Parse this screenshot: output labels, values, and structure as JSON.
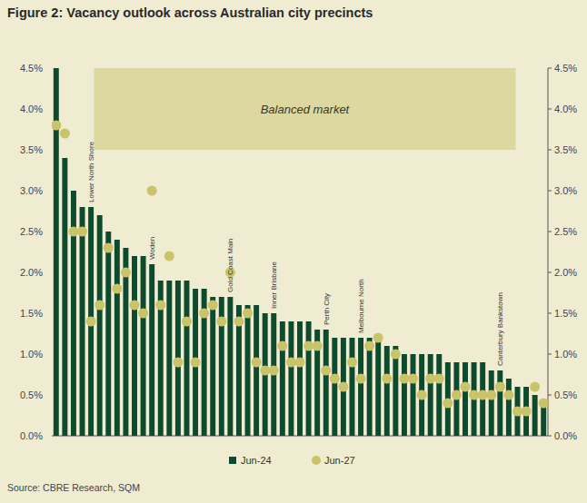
{
  "chart_data": {
    "type": "bar",
    "title": "Figure 2:  Vacancy outlook across Australian city precincts",
    "source": "Source: CBRE Research, SQM",
    "categories": [
      null,
      null,
      null,
      null,
      "Lower North Shore",
      null,
      null,
      null,
      null,
      null,
      null,
      "Woden",
      null,
      null,
      null,
      null,
      null,
      null,
      null,
      null,
      "Gold Coast Main",
      null,
      null,
      null,
      null,
      "Inner Brisbane",
      null,
      null,
      null,
      null,
      null,
      "Perth City",
      null,
      null,
      null,
      "Melbourne North",
      null,
      null,
      null,
      null,
      null,
      null,
      null,
      null,
      null,
      null,
      null,
      null,
      null,
      null,
      null,
      "Canterbury Bankstown",
      null,
      null,
      null,
      null,
      null
    ],
    "series": [
      {
        "name": "Jun-24",
        "type": "bar",
        "color": "#0e4a2d",
        "values": [
          4.5,
          3.4,
          3.0,
          2.8,
          2.8,
          2.7,
          2.5,
          2.4,
          2.3,
          2.2,
          2.2,
          2.1,
          1.9,
          1.9,
          1.9,
          1.9,
          1.8,
          1.8,
          1.7,
          1.7,
          1.7,
          1.6,
          1.6,
          1.6,
          1.5,
          1.5,
          1.4,
          1.4,
          1.4,
          1.4,
          1.3,
          1.3,
          1.2,
          1.2,
          1.2,
          1.2,
          1.2,
          1.2,
          1.1,
          1.1,
          1.0,
          1.0,
          1.0,
          1.0,
          1.0,
          0.9,
          0.9,
          0.9,
          0.9,
          0.9,
          0.8,
          0.8,
          0.7,
          0.6,
          0.6,
          0.5,
          0.4
        ]
      },
      {
        "name": "Jun-27",
        "type": "scatter",
        "marker": "circle",
        "color": "#c9c36a",
        "values": [
          3.8,
          3.7,
          2.5,
          2.5,
          1.4,
          1.6,
          2.3,
          1.8,
          2.0,
          1.6,
          1.5,
          3.0,
          1.6,
          2.2,
          0.9,
          1.4,
          0.9,
          1.5,
          1.6,
          1.4,
          2.0,
          1.4,
          1.5,
          0.9,
          0.8,
          0.8,
          1.1,
          0.9,
          0.9,
          1.1,
          1.1,
          0.8,
          0.7,
          0.6,
          0.9,
          0.7,
          1.1,
          1.2,
          0.7,
          1.0,
          0.7,
          0.7,
          0.5,
          0.7,
          0.7,
          0.4,
          0.5,
          0.6,
          0.5,
          0.5,
          0.5,
          0.6,
          0.5,
          0.3,
          0.3,
          0.6,
          0.4
        ]
      }
    ],
    "bands": [
      {
        "label": "Balanced market",
        "from": 3.5,
        "to": 4.5
      }
    ],
    "ylim": [
      0,
      4.5
    ],
    "yticks": [
      {
        "value": 0,
        "label": "0.0%"
      },
      {
        "value": 0.5,
        "label": "0.5%"
      },
      {
        "value": 1.0,
        "label": "1.0%"
      },
      {
        "value": 1.5,
        "label": "1.5%"
      },
      {
        "value": 2.0,
        "label": "2.0%"
      },
      {
        "value": 2.5,
        "label": "2.5%"
      },
      {
        "value": 3.0,
        "label": "3.0%"
      },
      {
        "value": 3.5,
        "label": "3.5%"
      },
      {
        "value": 4.0,
        "label": "4.0%"
      },
      {
        "value": 4.5,
        "label": "4.5%"
      }
    ],
    "grid": false,
    "legend": "bottom"
  }
}
